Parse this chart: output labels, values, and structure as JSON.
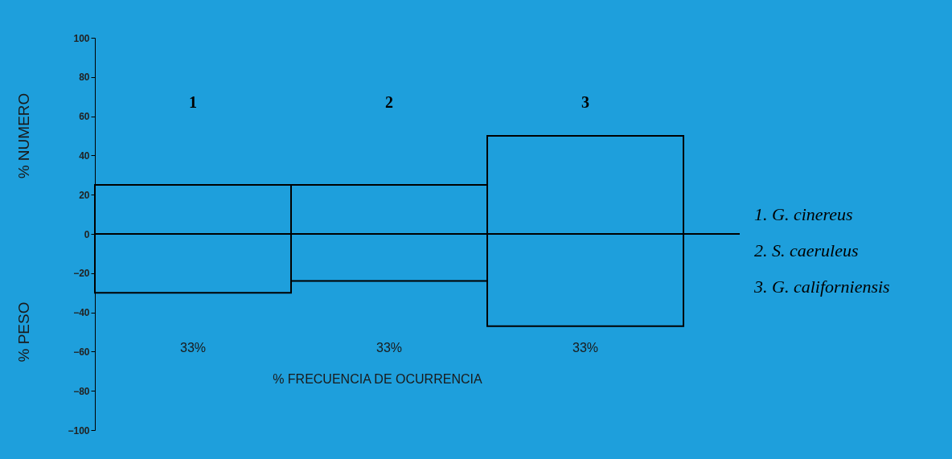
{
  "chart_data": {
    "type": "bar",
    "stacked": true,
    "categories": [
      "1",
      "2",
      "3"
    ],
    "series": [
      {
        "color": "#1e9fdc",
        "values": [
          25,
          25,
          50
        ]
      },
      {
        "color": "#1e9fdc",
        "values": [
          -30,
          -24,
          -47
        ]
      }
    ],
    "xlabel": "% FRECUENCIA DE OCURRENCIA",
    "ylim": [
      -100,
      100
    ],
    "yticks": [
      -100,
      -80,
      -60,
      -40,
      -20,
      0,
      20,
      40,
      60,
      80,
      100
    ],
    "grid": false,
    "legend": false,
    "ref_lines": [
      {
        "axis": "y",
        "value": 0
      }
    ],
    "annotations": [
      "33%",
      "33%",
      "33%",
      "% NUMERO",
      "% PESO",
      "1. G. cinereus",
      "2. S. caeruleus",
      "3. G. californiensis"
    ]
  }
}
